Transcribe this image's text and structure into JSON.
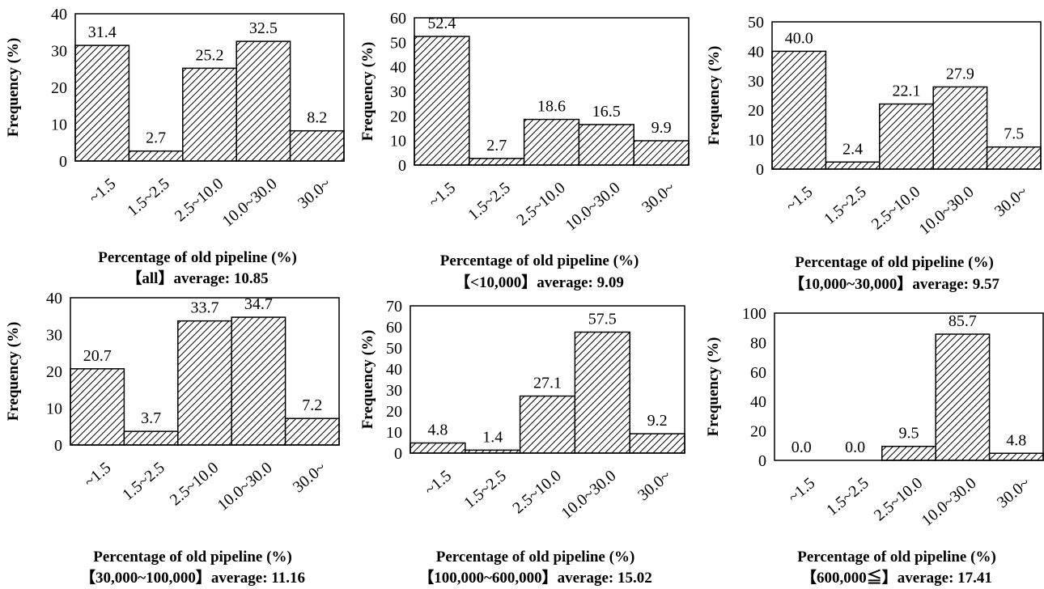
{
  "chart_data": [
    {
      "type": "bar",
      "categories": [
        "~1.5",
        "1.5~2.5",
        "2.5~10.0",
        "10.0~30.0",
        "30.0~"
      ],
      "values": [
        31.4,
        2.7,
        25.2,
        32.5,
        8.2
      ],
      "data_labels": [
        "31.4",
        "2.7",
        "25.2",
        "32.5",
        "8.2"
      ],
      "ylim": [
        0,
        40
      ],
      "yticks": [
        0,
        10,
        20,
        30,
        40
      ],
      "ylabel": "Frequency (%)",
      "xlabel": "Percentage of old pipeline (%)",
      "subtitle": "【all】average: 10.85",
      "fill": "diagonal hatch",
      "grid": false,
      "legend": "none"
    },
    {
      "type": "bar",
      "categories": [
        "~1.5",
        "1.5~2.5",
        "2.5~10.0",
        "10.0~30.0",
        "30.0~"
      ],
      "values": [
        52.4,
        2.7,
        18.6,
        16.5,
        9.9
      ],
      "data_labels": [
        "52.4",
        "2.7",
        "18.6",
        "16.5",
        "9.9"
      ],
      "ylim": [
        0,
        60
      ],
      "yticks": [
        0,
        10,
        20,
        30,
        40,
        50,
        60
      ],
      "ylabel": "Frequency (%)",
      "xlabel": "Percentage of old pipeline (%)",
      "subtitle": "【<10,000】average: 9.09",
      "fill": "diagonal hatch",
      "grid": false,
      "legend": "none"
    },
    {
      "type": "bar",
      "categories": [
        "~1.5",
        "1.5~2.5",
        "2.5~10.0",
        "10.0~30.0",
        "30.0~"
      ],
      "values": [
        40.0,
        2.4,
        22.1,
        27.9,
        7.5
      ],
      "data_labels": [
        "40.0",
        "2.4",
        "22.1",
        "27.9",
        "7.5"
      ],
      "ylim": [
        0,
        50
      ],
      "yticks": [
        0,
        10,
        20,
        30,
        40,
        50
      ],
      "ylabel": "Frequency (%)",
      "xlabel": "Percentage of old pipeline (%)",
      "subtitle": "【10,000~30,000】average: 9.57",
      "fill": "diagonal hatch",
      "grid": false,
      "legend": "none"
    },
    {
      "type": "bar",
      "categories": [
        "~1.5",
        "1.5~2.5",
        "2.5~10.0",
        "10.0~30.0",
        "30.0~"
      ],
      "values": [
        20.7,
        3.7,
        33.7,
        34.7,
        7.2
      ],
      "data_labels": [
        "20.7",
        "3.7",
        "33.7",
        "34.7",
        "7.2"
      ],
      "ylim": [
        0,
        40
      ],
      "yticks": [
        0,
        10,
        20,
        30,
        40
      ],
      "ylabel": "Frequency (%)",
      "xlabel": "Percentage of old pipeline (%)",
      "subtitle": "【30,000~100,000】average: 11.16",
      "fill": "diagonal hatch",
      "grid": false,
      "legend": "none"
    },
    {
      "type": "bar",
      "categories": [
        "~1.5",
        "1.5~2.5",
        "2.5~10.0",
        "10.0~30.0",
        "30.0~"
      ],
      "values": [
        4.8,
        1.4,
        27.1,
        57.5,
        9.2
      ],
      "data_labels": [
        "4.8",
        "1.4",
        "27.1",
        "57.5",
        "9.2"
      ],
      "ylim": [
        0,
        70
      ],
      "yticks": [
        0,
        10,
        20,
        30,
        40,
        50,
        60,
        70
      ],
      "ylabel": "Frequency (%)",
      "xlabel": "Percentage of old pipeline (%)",
      "subtitle": "【100,000~600,000】average: 15.02",
      "fill": "diagonal hatch",
      "grid": false,
      "legend": "none"
    },
    {
      "type": "bar",
      "categories": [
        "~1.5",
        "1.5~2.5",
        "2.5~10.0",
        "10.0~30.0",
        "30.0~"
      ],
      "values": [
        0.0,
        0.0,
        9.5,
        85.7,
        4.8
      ],
      "data_labels": [
        "0.0",
        "0.0",
        "9.5",
        "85.7",
        "4.8"
      ],
      "ylim": [
        0,
        100
      ],
      "yticks": [
        0,
        20,
        40,
        60,
        80,
        100
      ],
      "ylabel": "Frequency (%)",
      "xlabel": "Percentage of old pipeline (%)",
      "subtitle": "【600,000≦】average: 17.41",
      "fill": "diagonal hatch",
      "grid": false,
      "legend": "none"
    }
  ],
  "style": {
    "bar_fill": "#ffffff",
    "hatch_color": "#000000",
    "axis_color": "#000000",
    "text_color": "#000000"
  }
}
